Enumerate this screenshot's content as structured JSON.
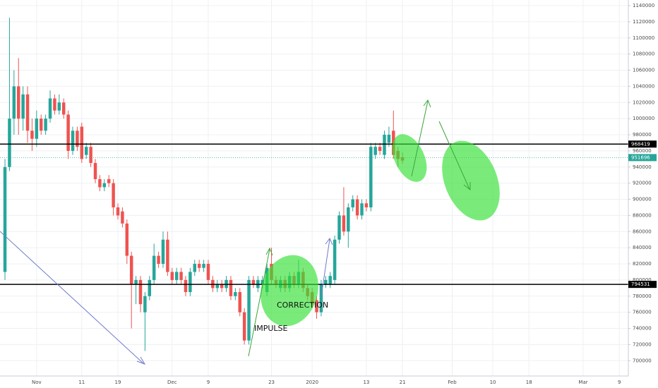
{
  "chart_data": {
    "type": "candlestick",
    "x": [
      0,
      1,
      2,
      3,
      4,
      5,
      6,
      7,
      8,
      9,
      10,
      11,
      12,
      13,
      14,
      15,
      16,
      17,
      18,
      19,
      20,
      21,
      22,
      23,
      24,
      25,
      26,
      27,
      28,
      29,
      30,
      31,
      32,
      33,
      34,
      35,
      36,
      37,
      38,
      39,
      40,
      41,
      42,
      43,
      44,
      45,
      46,
      47,
      48,
      49,
      50,
      51,
      52,
      53,
      54,
      55,
      56,
      57,
      58,
      59,
      60,
      61,
      62,
      63,
      64,
      65,
      66,
      67,
      68,
      69,
      70,
      71,
      72,
      73,
      74,
      75,
      76,
      77,
      78,
      79,
      80,
      81,
      82,
      83,
      84,
      85,
      86,
      87,
      88
    ],
    "open": [
      810000,
      940000,
      1000000,
      1040000,
      1000000,
      1030000,
      985000,
      975000,
      1000000,
      985000,
      1000000,
      1025000,
      1010000,
      1020000,
      1005000,
      960000,
      985000,
      990000,
      955000,
      965000,
      945000,
      925000,
      915000,
      925000,
      920000,
      890000,
      885000,
      870000,
      830000,
      795000,
      800000,
      760000,
      780000,
      800000,
      830000,
      820000,
      850000,
      810000,
      800000,
      810000,
      800000,
      785000,
      810000,
      820000,
      815000,
      820000,
      800000,
      790000,
      795000,
      790000,
      800000,
      780000,
      785000,
      760000,
      725000,
      800000,
      790000,
      795000,
      785000,
      820000,
      800000,
      790000,
      800000,
      790000,
      805000,
      795000,
      810000,
      790000,
      785000,
      775000,
      760000,
      795000,
      795000,
      800000,
      850000,
      880000,
      860000,
      890000,
      900000,
      880000,
      895000,
      890000,
      955000,
      965000,
      955000,
      970000,
      985000,
      960000,
      952000
    ],
    "high": [
      950000,
      1125000,
      1060000,
      1075000,
      1040000,
      1040000,
      1000000,
      1010000,
      1005000,
      1005000,
      1035000,
      1030000,
      1030000,
      1025000,
      1010000,
      990000,
      990000,
      995000,
      970000,
      970000,
      950000,
      930000,
      925000,
      930000,
      925000,
      895000,
      890000,
      875000,
      835000,
      805000,
      805000,
      785000,
      805000,
      845000,
      835000,
      860000,
      860000,
      815000,
      815000,
      815000,
      805000,
      815000,
      825000,
      825000,
      825000,
      825000,
      805000,
      800000,
      800000,
      805000,
      805000,
      790000,
      790000,
      765000,
      805000,
      805000,
      805000,
      805000,
      820000,
      840000,
      805000,
      805000,
      805000,
      810000,
      810000,
      825000,
      815000,
      795000,
      790000,
      780000,
      800000,
      805000,
      810000,
      855000,
      885000,
      915000,
      895000,
      905000,
      905000,
      900000,
      900000,
      970000,
      970000,
      970000,
      985000,
      990000,
      1010000,
      965000,
      958000
    ],
    "low": [
      800000,
      935000,
      980000,
      980000,
      985000,
      970000,
      960000,
      965000,
      980000,
      980000,
      995000,
      1005000,
      1005000,
      1000000,
      950000,
      955000,
      960000,
      945000,
      950000,
      940000,
      920000,
      910000,
      910000,
      915000,
      880000,
      875000,
      865000,
      820000,
      740000,
      770000,
      760000,
      712000,
      775000,
      795000,
      815000,
      815000,
      805000,
      795000,
      795000,
      795000,
      780000,
      780000,
      805000,
      810000,
      810000,
      795000,
      785000,
      785000,
      785000,
      785000,
      775000,
      775000,
      755000,
      720000,
      720000,
      790000,
      785000,
      790000,
      780000,
      795000,
      790000,
      785000,
      785000,
      785000,
      790000,
      790000,
      785000,
      775000,
      765000,
      752000,
      755000,
      790000,
      790000,
      795000,
      845000,
      855000,
      840000,
      885000,
      875000,
      875000,
      885000,
      885000,
      950000,
      955000,
      950000,
      965000,
      950000,
      940000,
      944000
    ],
    "close": [
      940000,
      1000000,
      1040000,
      1000000,
      1030000,
      985000,
      975000,
      1000000,
      985000,
      1000000,
      1025000,
      1010000,
      1020000,
      1005000,
      960000,
      985000,
      965000,
      950000,
      965000,
      945000,
      925000,
      915000,
      920000,
      920000,
      890000,
      880000,
      870000,
      830000,
      795000,
      800000,
      770000,
      780000,
      800000,
      830000,
      820000,
      850000,
      810000,
      800000,
      810000,
      800000,
      785000,
      810000,
      820000,
      815000,
      820000,
      800000,
      790000,
      795000,
      790000,
      800000,
      780000,
      785000,
      760000,
      725000,
      800000,
      795000,
      800000,
      800000,
      815000,
      800000,
      795000,
      800000,
      790000,
      805000,
      795000,
      810000,
      790000,
      780000,
      770000,
      760000,
      795000,
      800000,
      805000,
      850000,
      880000,
      860000,
      890000,
      900000,
      880000,
      895000,
      890000,
      965000,
      965000,
      960000,
      980000,
      980000,
      955000,
      950000,
      948000
    ],
    "up_color": "#26a69a",
    "down_color": "#ef5350",
    "xlim": [
      -1.1,
      138
    ],
    "xticks": [
      {
        "value": 7,
        "label": "Nov"
      },
      {
        "value": 17,
        "label": "11"
      },
      {
        "value": 25,
        "label": "19"
      },
      {
        "value": 37,
        "label": "Dec"
      },
      {
        "value": 45,
        "label": "9"
      },
      {
        "value": 59,
        "label": "23"
      },
      {
        "value": 68,
        "label": "2020"
      },
      {
        "value": 80,
        "label": "13"
      },
      {
        "value": 88,
        "label": "21"
      },
      {
        "value": 99,
        "label": "Feb"
      },
      {
        "value": 108,
        "label": "10"
      },
      {
        "value": 116,
        "label": "18"
      },
      {
        "value": 128,
        "label": "Mar"
      },
      {
        "value": 136,
        "label": "9"
      }
    ],
    "ylim": [
      681000,
      1147000
    ],
    "yticks": [
      700000,
      720000,
      740000,
      760000,
      780000,
      800000,
      820000,
      840000,
      860000,
      880000,
      900000,
      920000,
      940000,
      960000,
      980000,
      1000000,
      1020000,
      1040000,
      1060000,
      1080000,
      1100000,
      1120000,
      1140000
    ],
    "grid": true,
    "price_lines": [
      {
        "value": 968419,
        "color": "#000000",
        "style": "solid"
      },
      {
        "value": 794531,
        "color": "#000000",
        "style": "solid"
      },
      {
        "value": 951696,
        "color": "#26a69a",
        "style": "dotted"
      }
    ],
    "annotations": [
      "IMPULSE",
      "CORRECTION"
    ]
  }
}
